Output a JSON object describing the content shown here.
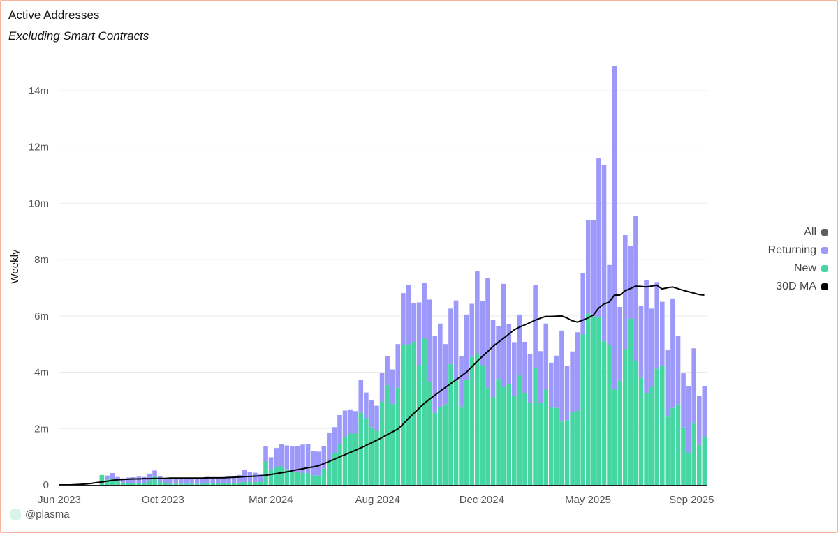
{
  "header": {
    "title": "Active Addresses",
    "subtitle": "Excluding Smart Contracts"
  },
  "watermark": "@plasma",
  "colors": {
    "all": "#5e5d66",
    "returning": "#9d99fb",
    "new": "#45d6a3",
    "ma": "#000000",
    "grid": "#ebebeb",
    "border": "#f5b3a0"
  },
  "chart_data": {
    "type": "bar",
    "stacked": true,
    "title": "Active Addresses",
    "subtitle": "Excluding Smart Contracts",
    "xlabel": "",
    "ylabel": "Weekly",
    "ylim": [
      0,
      15000000
    ],
    "y_ticks": [
      {
        "value": 0,
        "label": "0"
      },
      {
        "value": 2,
        "label": "2m"
      },
      {
        "value": 4,
        "label": "4m"
      },
      {
        "value": 6,
        "label": "6m"
      },
      {
        "value": 8,
        "label": "8m"
      },
      {
        "value": 10,
        "label": "10m"
      },
      {
        "value": 12,
        "label": "12m"
      },
      {
        "value": 14,
        "label": "14m"
      }
    ],
    "y_unit": "millions",
    "x_unit": "weeks since Jun 2023",
    "first_bar_week": 8,
    "x_ticks": [
      {
        "week": 0,
        "label": "Jun 2023"
      },
      {
        "week": 19.6,
        "label": "Oct 2023"
      },
      {
        "week": 40,
        "label": "Mar 2024"
      },
      {
        "week": 60.2,
        "label": "Aug 2024"
      },
      {
        "week": 79.9,
        "label": "Dec 2024"
      },
      {
        "week": 100,
        "label": "May 2025"
      },
      {
        "week": 119.6,
        "label": "Sep 2025"
      }
    ],
    "grid": true,
    "legend_position": "right",
    "legend": [
      {
        "label": "All",
        "key": "all"
      },
      {
        "label": "Returning",
        "key": "returning"
      },
      {
        "label": "New",
        "key": "new"
      },
      {
        "label": "30D MA",
        "key": "ma"
      }
    ],
    "series": [
      {
        "name": "All",
        "values": [
          0.35,
          0.33,
          0.42,
          0.28,
          0.23,
          0.26,
          0.27,
          0.29,
          0.28,
          0.4,
          0.51,
          0.31,
          0.24,
          0.23,
          0.23,
          0.23,
          0.23,
          0.23,
          0.25,
          0.25,
          0.28,
          0.23,
          0.23,
          0.28,
          0.31,
          0.31,
          0.35,
          0.52,
          0.46,
          0.43,
          0.39,
          1.37,
          0.98,
          1.31,
          1.46,
          1.4,
          1.38,
          1.38,
          1.43,
          1.45,
          1.2,
          1.18,
          1.38,
          1.86,
          2.05,
          2.48,
          2.64,
          2.68,
          2.62,
          3.72,
          3.28,
          3.02,
          2.81,
          3.97,
          4.56,
          4.1,
          5.0,
          6.81,
          7.1,
          6.46,
          6.48,
          7.17,
          6.58,
          5.29,
          5.73,
          5.0,
          6.26,
          6.55,
          4.58,
          6.05,
          6.43,
          7.58,
          6.52,
          7.35,
          5.85,
          5.63,
          7.14,
          5.72,
          5.07,
          6.05,
          5.08,
          4.66,
          7.11,
          4.75,
          5.73,
          4.34,
          4.59,
          5.48,
          4.22,
          4.74,
          5.42,
          7.53,
          9.41,
          9.4,
          11.62,
          11.35,
          7.81,
          14.89,
          6.32,
          8.87,
          8.5,
          9.56,
          6.35,
          7.28,
          6.26,
          7.2,
          6.5,
          4.78,
          6.62,
          5.29,
          3.96,
          3.51,
          4.85,
          3.16,
          3.5
        ]
      },
      {
        "name": "New",
        "values": [
          0.35,
          0.18,
          0.21,
          0.12,
          0.08,
          0.06,
          0.05,
          0.05,
          0.05,
          0.15,
          0.29,
          0.1,
          0.05,
          0.04,
          0.04,
          0.04,
          0.04,
          0.04,
          0.04,
          0.04,
          0.05,
          0.05,
          0.05,
          0.05,
          0.06,
          0.06,
          0.08,
          0.1,
          0.1,
          0.1,
          0.1,
          0.83,
          0.55,
          0.63,
          0.67,
          0.55,
          0.47,
          0.47,
          0.42,
          0.42,
          0.33,
          0.33,
          0.58,
          0.88,
          1.13,
          1.45,
          1.69,
          1.82,
          1.82,
          2.56,
          2.37,
          2.05,
          1.92,
          2.96,
          3.54,
          2.87,
          3.45,
          4.96,
          4.99,
          5.08,
          4.25,
          5.19,
          3.66,
          2.56,
          2.77,
          2.87,
          4.29,
          3.72,
          2.78,
          3.73,
          4.54,
          4.67,
          4.25,
          3.45,
          3.12,
          3.76,
          3.47,
          3.59,
          3.17,
          3.88,
          3.26,
          2.91,
          4.14,
          2.92,
          3.38,
          2.75,
          2.73,
          2.25,
          2.3,
          2.58,
          2.63,
          5.34,
          6.08,
          5.98,
          5.95,
          5.1,
          4.98,
          3.38,
          3.7,
          4.82,
          5.9,
          4.39,
          3.8,
          3.25,
          3.48,
          4.12,
          4.24,
          2.42,
          2.73,
          2.86,
          2.04,
          1.15,
          2.21,
          1.42,
          1.72
        ]
      },
      {
        "name": "30D MA",
        "type": "line",
        "values": [
          0,
          0,
          0,
          0.01,
          0.02,
          0.03,
          0.05,
          0.08,
          0.1,
          0.13,
          0.16,
          0.18,
          0.19,
          0.2,
          0.21,
          0.21,
          0.22,
          0.22,
          0.23,
          0.23,
          0.23,
          0.24,
          0.24,
          0.24,
          0.24,
          0.24,
          0.24,
          0.24,
          0.25,
          0.25,
          0.25,
          0.25,
          0.26,
          0.27,
          0.28,
          0.29,
          0.3,
          0.31,
          0.32,
          0.34,
          0.37,
          0.4,
          0.43,
          0.46,
          0.5,
          0.54,
          0.57,
          0.61,
          0.64,
          0.68,
          0.75,
          0.83,
          0.91,
          0.99,
          1.07,
          1.15,
          1.23,
          1.31,
          1.4,
          1.49,
          1.58,
          1.68,
          1.78,
          1.88,
          1.98,
          2.15,
          2.35,
          2.53,
          2.71,
          2.89,
          3.04,
          3.18,
          3.32,
          3.46,
          3.59,
          3.73,
          3.86,
          4.0,
          4.19,
          4.38,
          4.56,
          4.73,
          4.91,
          5.06,
          5.2,
          5.35,
          5.5,
          5.6,
          5.68,
          5.76,
          5.85,
          5.92,
          5.98,
          5.98,
          5.99,
          6.0,
          5.93,
          5.83,
          5.78,
          5.85,
          5.93,
          6.03,
          6.27,
          6.42,
          6.49,
          6.74,
          6.74,
          6.89,
          6.97,
          7.06,
          7.05,
          7.03,
          7.06,
          7.09,
          6.96,
          7.0,
          7.03,
          6.97,
          6.91,
          6.86,
          6.81,
          6.76,
          6.74
        ]
      }
    ]
  }
}
